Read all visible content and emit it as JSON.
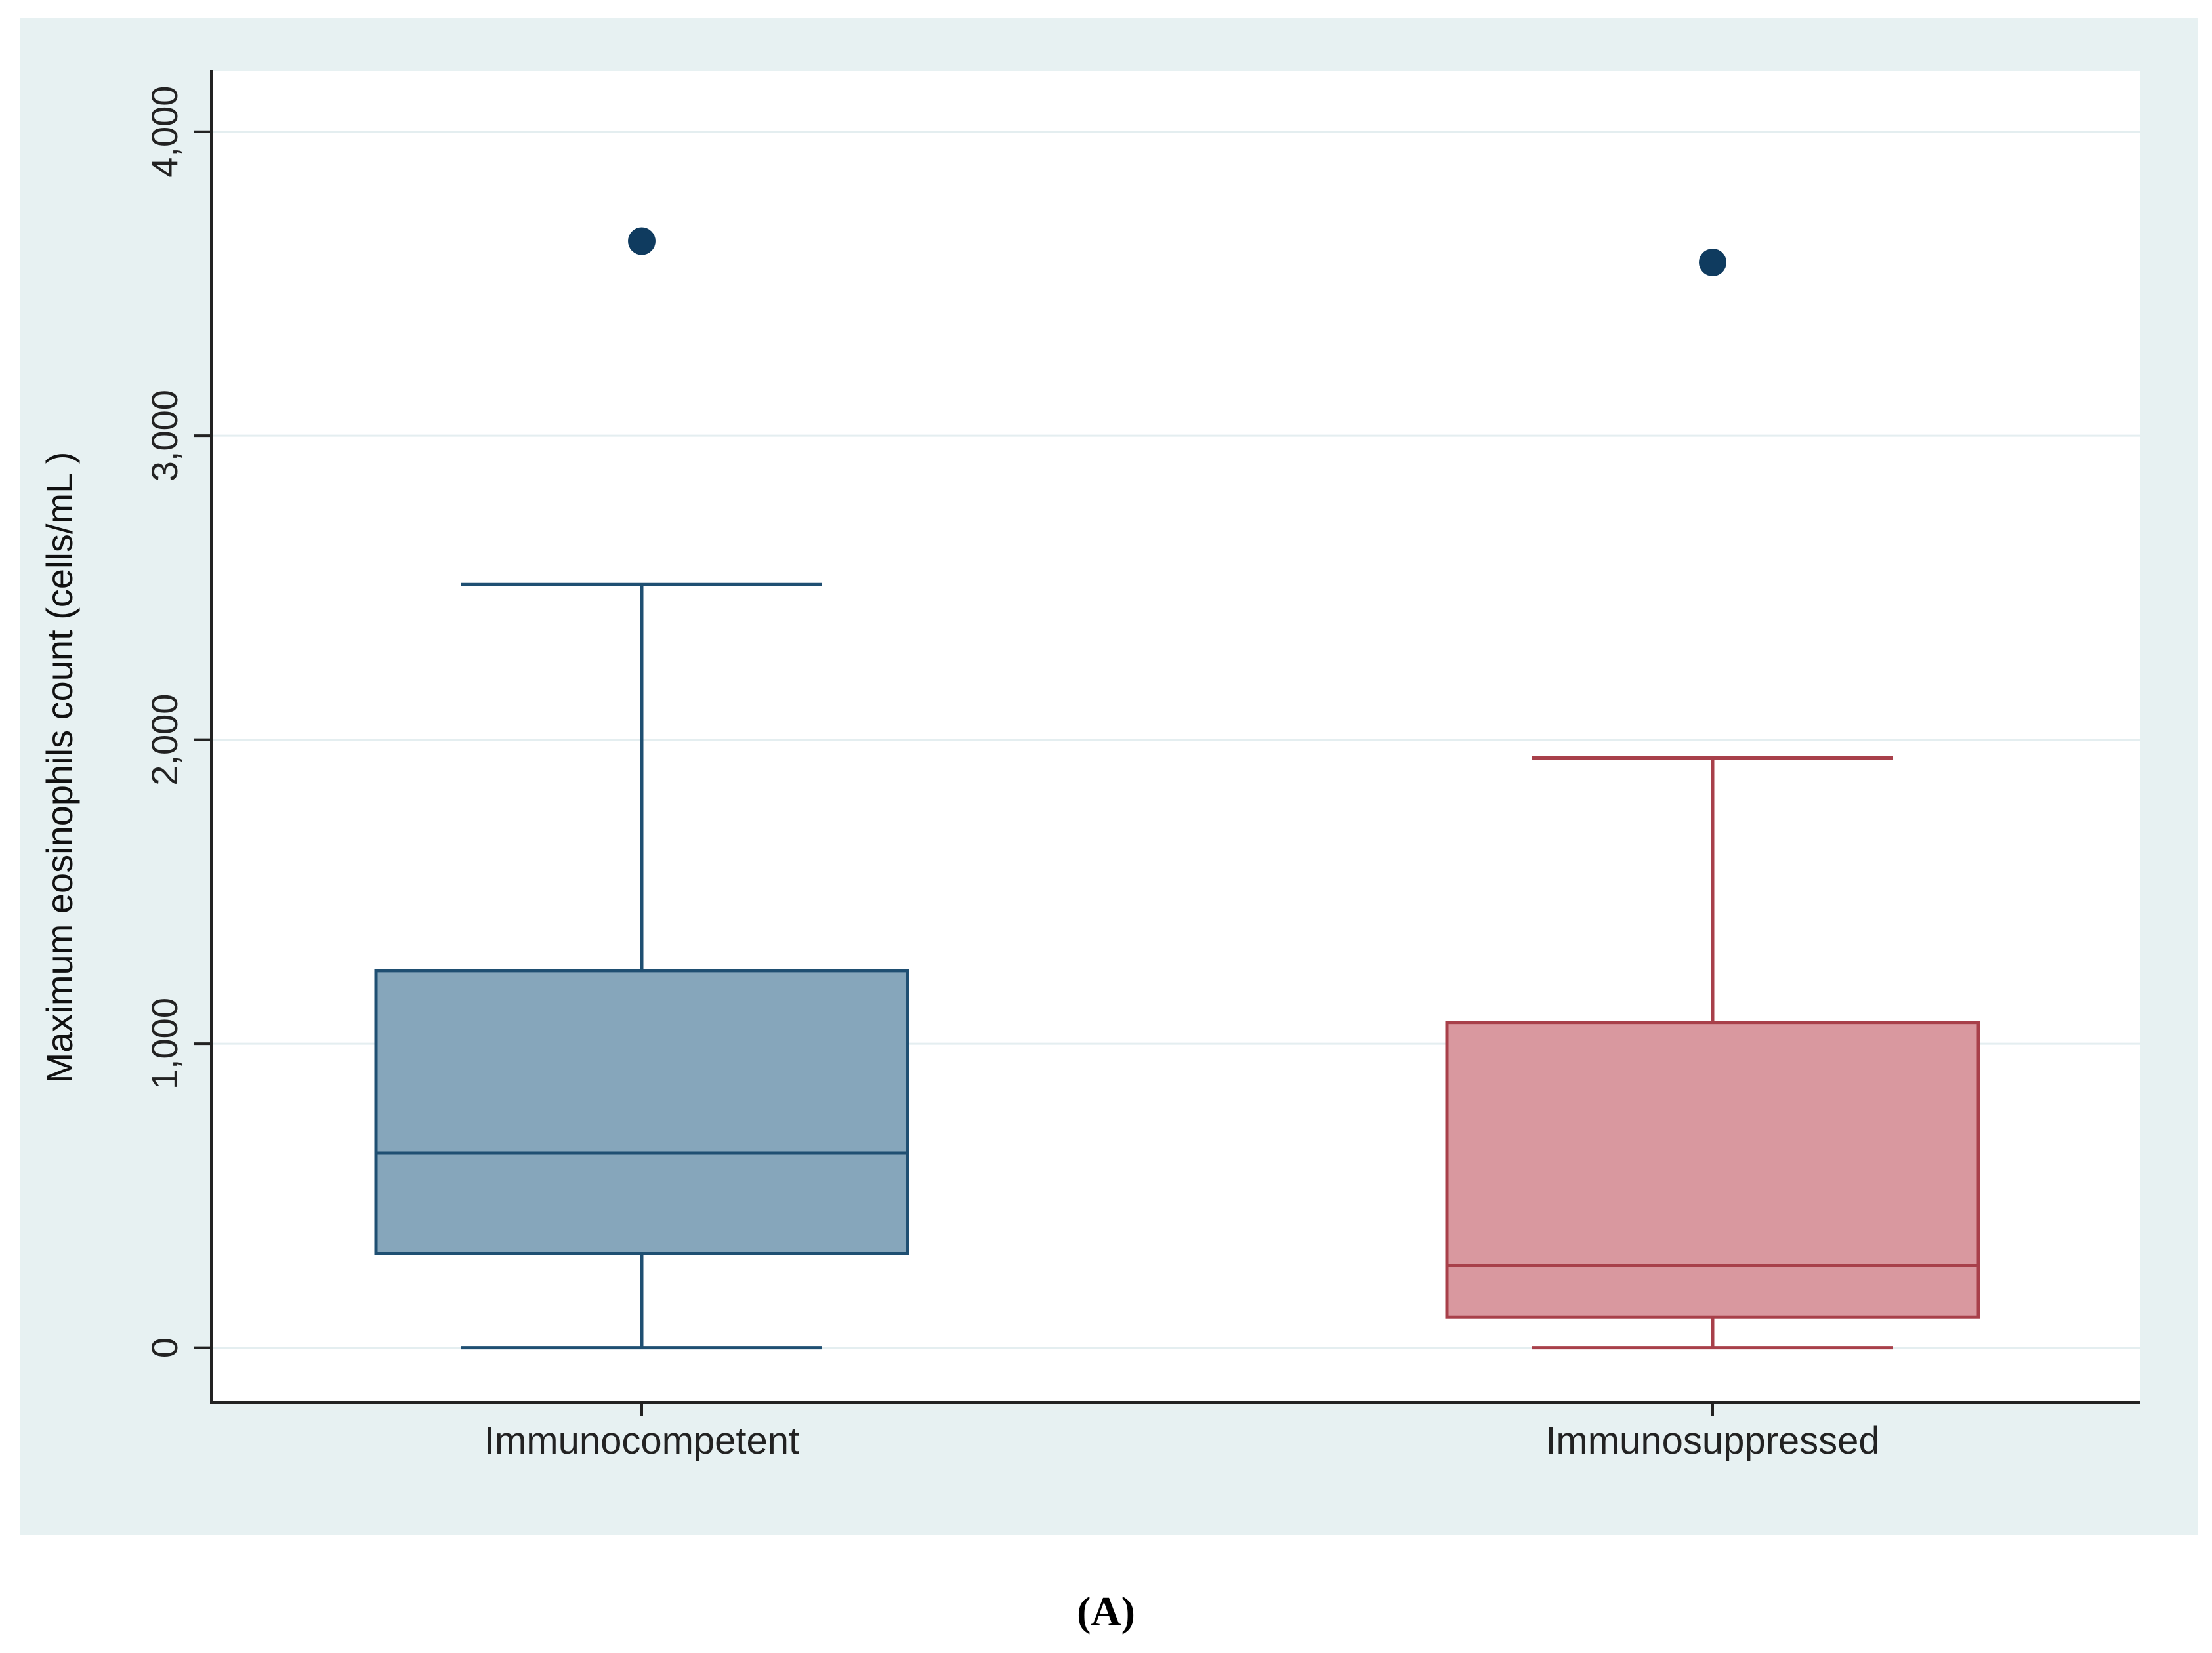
{
  "chart_data": {
    "type": "box",
    "xlabel": "",
    "ylabel": "Maximum eosinophils count (cells/mL )",
    "ylim": [
      -180,
      4200
    ],
    "yticks": [
      0,
      1000,
      2000,
      3000,
      4000
    ],
    "ytick_labels": [
      "0",
      "1,000",
      "2,000",
      "3,000",
      "4,000"
    ],
    "grid": true,
    "categories": [
      "Immunocompetent",
      "Immunosuppressed"
    ],
    "boxes": [
      {
        "category": "Immunocompetent",
        "whisker_low": 0,
        "q1": 310,
        "median": 640,
        "q3": 1240,
        "whisker_high": 2510,
        "outliers": [
          3640
        ],
        "stroke": "#1f4f72",
        "fill": "#86a6bb"
      },
      {
        "category": "Immunosuppressed",
        "whisker_low": 0,
        "q1": 100,
        "median": 270,
        "q3": 1070,
        "whisker_high": 1940,
        "outliers": [
          3570
        ],
        "stroke": "#a8404a",
        "fill": "#d9989f"
      }
    ],
    "outlier_color": "#0f3b5f",
    "background_color": "#e7f1f2",
    "plot_background": "#ffffff",
    "grid_color": "#e4eef0"
  },
  "caption": "(A)"
}
